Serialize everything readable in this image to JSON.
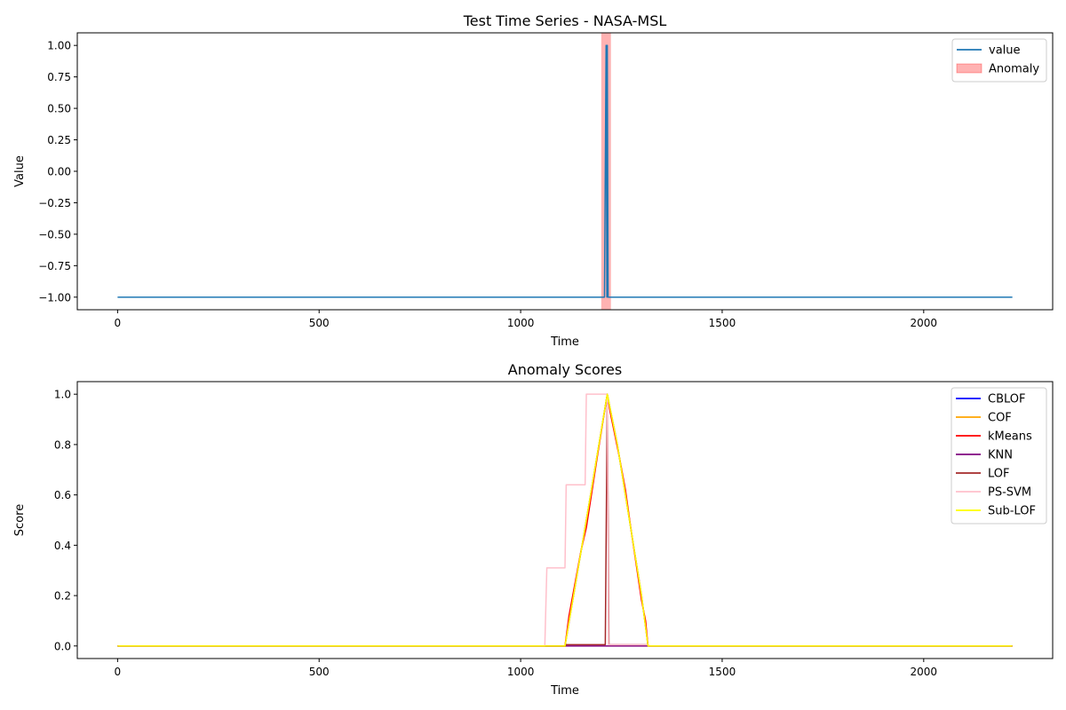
{
  "chart_data": [
    {
      "type": "line",
      "title": "Test Time Series - NASA-MSL",
      "xlabel": "Time",
      "ylabel": "Value",
      "xlim": [
        -100,
        2320
      ],
      "ylim": [
        -1.1,
        1.1
      ],
      "xticks": [
        0,
        500,
        1000,
        1500,
        2000
      ],
      "yticks": [
        -1.0,
        -0.75,
        -0.5,
        -0.25,
        0.0,
        0.25,
        0.5,
        0.75,
        1.0
      ],
      "ytick_labels": [
        "−1.00",
        "−0.75",
        "−0.50",
        "−0.25",
        "0.00",
        "0.25",
        "0.50",
        "0.75",
        "1.00"
      ],
      "legend_position": "top-right",
      "grid": false,
      "series": [
        {
          "name": "value",
          "color": "#1f77b4",
          "points": [
            [
              0,
              -1
            ],
            [
              1208,
              -1
            ],
            [
              1212,
              1
            ],
            [
              1214,
              -1
            ],
            [
              1215,
              1
            ],
            [
              1217,
              -1
            ],
            [
              2220,
              -1
            ]
          ]
        }
      ],
      "spans": [
        {
          "name": "Anomaly",
          "x0": 1200,
          "x1": 1224,
          "color": "#ff0000",
          "alpha": 0.3
        }
      ]
    },
    {
      "type": "line",
      "title": "Anomaly Scores",
      "xlabel": "Time",
      "ylabel": "Score",
      "xlim": [
        -100,
        2320
      ],
      "ylim": [
        -0.05,
        1.05
      ],
      "xticks": [
        0,
        500,
        1000,
        1500,
        2000
      ],
      "yticks": [
        0.0,
        0.2,
        0.4,
        0.6,
        0.8,
        1.0
      ],
      "ytick_labels": [
        "0.0",
        "0.2",
        "0.4",
        "0.6",
        "0.8",
        "1.0"
      ],
      "legend_position": "top-right",
      "grid": false,
      "series": [
        {
          "name": "CBLOF",
          "color": "#0000ff",
          "points": [
            [
              0,
              0
            ],
            [
              1110,
              0
            ],
            [
              1163,
              0.5
            ],
            [
              1215,
              1.0
            ],
            [
              1240,
              0.8
            ],
            [
              1270,
              0.5
            ],
            [
              1300,
              0.2
            ],
            [
              1316,
              0
            ],
            [
              2220,
              0
            ]
          ]
        },
        {
          "name": "COF",
          "color": "#ffa500",
          "points": [
            [
              0,
              0
            ],
            [
              1110,
              0
            ],
            [
              1163,
              0.5
            ],
            [
              1215,
              1.0
            ],
            [
              1240,
              0.8
            ],
            [
              1270,
              0.5
            ],
            [
              1300,
              0.2
            ],
            [
              1316,
              0
            ],
            [
              2220,
              0
            ]
          ]
        },
        {
          "name": "kMeans",
          "color": "#ff0000",
          "points": [
            [
              0,
              0
            ],
            [
              1110,
              0
            ],
            [
              1120,
              0.12
            ],
            [
              1150,
              0.38
            ],
            [
              1163,
              0.47
            ],
            [
              1190,
              0.75
            ],
            [
              1215,
              1.0
            ],
            [
              1222,
              0.93
            ],
            [
              1245,
              0.75
            ],
            [
              1260,
              0.62
            ],
            [
              1275,
              0.45
            ],
            [
              1300,
              0.18
            ],
            [
              1310,
              0.1
            ],
            [
              1316,
              0
            ],
            [
              2220,
              0
            ]
          ]
        },
        {
          "name": "KNN",
          "color": "#800080",
          "points": [
            [
              0,
              0
            ],
            [
              2220,
              0
            ]
          ]
        },
        {
          "name": "LOF",
          "color": "#a52a2a",
          "points": [
            [
              0,
              0
            ],
            [
              1112,
              0
            ],
            [
              1113,
              0.005
            ],
            [
              1210,
              0.005
            ],
            [
              1215,
              1.0
            ],
            [
              1219,
              0.005
            ],
            [
              1316,
              0.005
            ],
            [
              1317,
              0
            ],
            [
              2220,
              0
            ]
          ]
        },
        {
          "name": "PS-SVM",
          "color": "#ffc0cb",
          "points": [
            [
              0,
              0
            ],
            [
              1060,
              0
            ],
            [
              1065,
              0.31
            ],
            [
              1110,
              0.31
            ],
            [
              1113,
              0.64
            ],
            [
              1160,
              0.64
            ],
            [
              1163,
              1.0
            ],
            [
              1215,
              1.0
            ],
            [
              1218,
              0.005
            ],
            [
              1316,
              0.005
            ],
            [
              1317,
              0
            ],
            [
              2220,
              0
            ]
          ]
        },
        {
          "name": "Sub-LOF",
          "color": "#ffff00",
          "points": [
            [
              0,
              0
            ],
            [
              1110,
              0
            ],
            [
              1163,
              0.5
            ],
            [
              1215,
              1.0
            ],
            [
              1240,
              0.8
            ],
            [
              1270,
              0.5
            ],
            [
              1300,
              0.2
            ],
            [
              1316,
              0
            ],
            [
              2220,
              0
            ]
          ]
        }
      ]
    }
  ]
}
